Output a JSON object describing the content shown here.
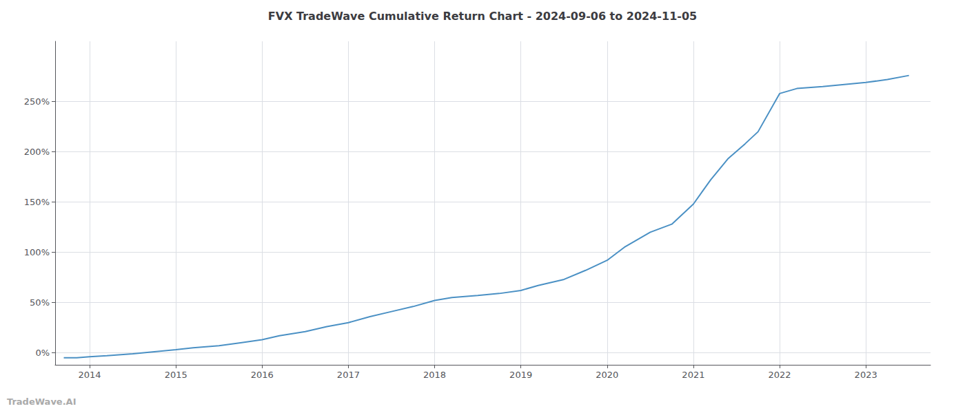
{
  "chart_data": {
    "type": "line",
    "title": "FVX TradeWave Cumulative Return Chart - 2024-09-06 to 2024-11-05",
    "watermark": "TradeWave.AI",
    "x": [
      2013.7,
      2013.85,
      2014.0,
      2014.2,
      2014.5,
      2014.75,
      2015.0,
      2015.2,
      2015.5,
      2015.75,
      2016.0,
      2016.2,
      2016.5,
      2016.75,
      2017.0,
      2017.25,
      2017.5,
      2017.75,
      2018.0,
      2018.2,
      2018.5,
      2018.75,
      2019.0,
      2019.2,
      2019.5,
      2019.75,
      2020.0,
      2020.2,
      2020.5,
      2020.75,
      2021.0,
      2021.2,
      2021.4,
      2021.6,
      2021.75,
      2022.0,
      2022.2,
      2022.5,
      2022.75,
      2023.0,
      2023.25,
      2023.5
    ],
    "values": [
      -0.05,
      -0.05,
      -0.04,
      -0.03,
      -0.01,
      0.01,
      0.03,
      0.05,
      0.07,
      0.1,
      0.13,
      0.17,
      0.21,
      0.26,
      0.3,
      0.36,
      0.41,
      0.46,
      0.52,
      0.55,
      0.57,
      0.59,
      0.62,
      0.67,
      0.73,
      0.82,
      0.92,
      1.05,
      1.2,
      1.28,
      1.48,
      1.72,
      1.93,
      2.08,
      2.2,
      2.58,
      2.63,
      2.65,
      2.67,
      2.69,
      2.72,
      2.76
    ],
    "color": "#4a90c4",
    "xlim": [
      2013.6,
      2023.75
    ],
    "xticks": [
      2014,
      2015,
      2016,
      2017,
      2018,
      2019,
      2020,
      2021,
      2022,
      2023
    ],
    "ylim": [
      -0.12,
      3.1
    ],
    "yticks": [
      {
        "value": 0.0,
        "label": "0%"
      },
      {
        "value": 0.5,
        "label": "50%"
      },
      {
        "value": 1.0,
        "label": "100%"
      },
      {
        "value": 1.5,
        "label": "150%"
      },
      {
        "value": 2.0,
        "label": "200%"
      },
      {
        "value": 2.5,
        "label": "250%"
      }
    ],
    "grid": true
  }
}
